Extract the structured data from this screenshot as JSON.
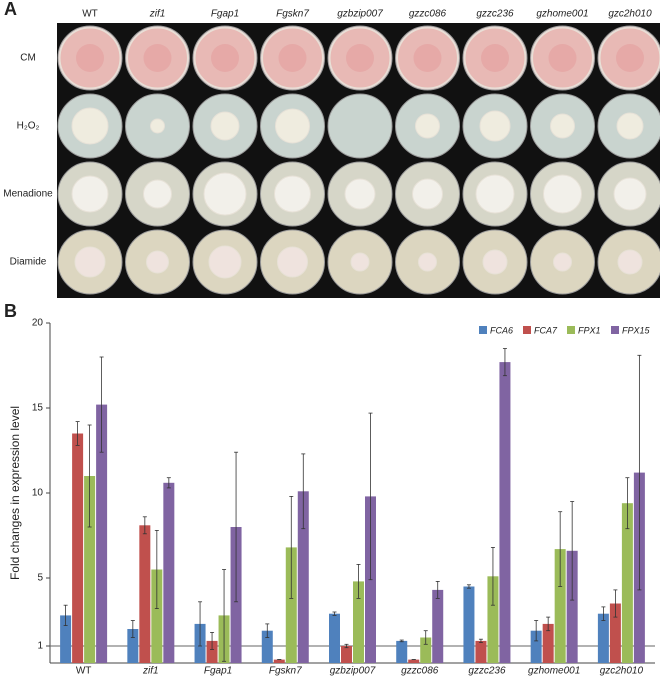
{
  "panel_a": {
    "label": "A",
    "columns": [
      "WT",
      "zif1",
      "Fgap1",
      "Fgskn7",
      "gzbzip007",
      "gzzc086",
      "gzzc236",
      "gzhome001",
      "gzc2h010"
    ],
    "rows": [
      "CM",
      "H₂O₂",
      "Menadione",
      "Diamide"
    ]
  },
  "chart_data": {
    "label": "B",
    "type": "bar",
    "y_label": "Fold changes in expression level",
    "categories": [
      "WT",
      "zif1",
      "Fgap1",
      "Fgskn7",
      "gzbzip007",
      "gzzc086",
      "gzzc236",
      "gzhome001",
      "gzc2h010"
    ],
    "series": [
      {
        "name": "FCA6",
        "color": "#4f81bd",
        "values": [
          2.8,
          2.0,
          2.3,
          1.9,
          2.9,
          1.3,
          4.5,
          1.9,
          2.9
        ],
        "errors": [
          0.6,
          0.5,
          1.3,
          0.4,
          0.1,
          0.05,
          0.1,
          0.6,
          0.4
        ]
      },
      {
        "name": "FCA7",
        "color": "#c0504d",
        "values": [
          13.5,
          8.1,
          1.3,
          0.2,
          1.0,
          0.2,
          1.3,
          2.3,
          3.5
        ],
        "errors": [
          0.7,
          0.5,
          0.5,
          0,
          0.1,
          0,
          0.1,
          0.4,
          0.8
        ]
      },
      {
        "name": "FPX1",
        "color": "#9bbb59",
        "values": [
          11.0,
          5.5,
          2.8,
          6.8,
          4.8,
          1.5,
          5.1,
          6.7,
          9.4
        ],
        "errors": [
          3.0,
          2.3,
          2.7,
          3.0,
          1.0,
          0.4,
          1.7,
          2.2,
          1.5
        ]
      },
      {
        "name": "FPX15",
        "color": "#8064a2",
        "values": [
          15.2,
          10.6,
          8.0,
          10.1,
          9.8,
          4.3,
          17.7,
          6.6,
          11.2
        ],
        "errors": [
          2.8,
          0.3,
          4.4,
          2.2,
          4.9,
          0.5,
          0.8,
          2.9,
          6.9
        ]
      }
    ],
    "ylim": [
      0,
      20
    ],
    "yticks": [
      1,
      5,
      10,
      15,
      20
    ],
    "reference_line": 1,
    "legend": "top-right"
  }
}
